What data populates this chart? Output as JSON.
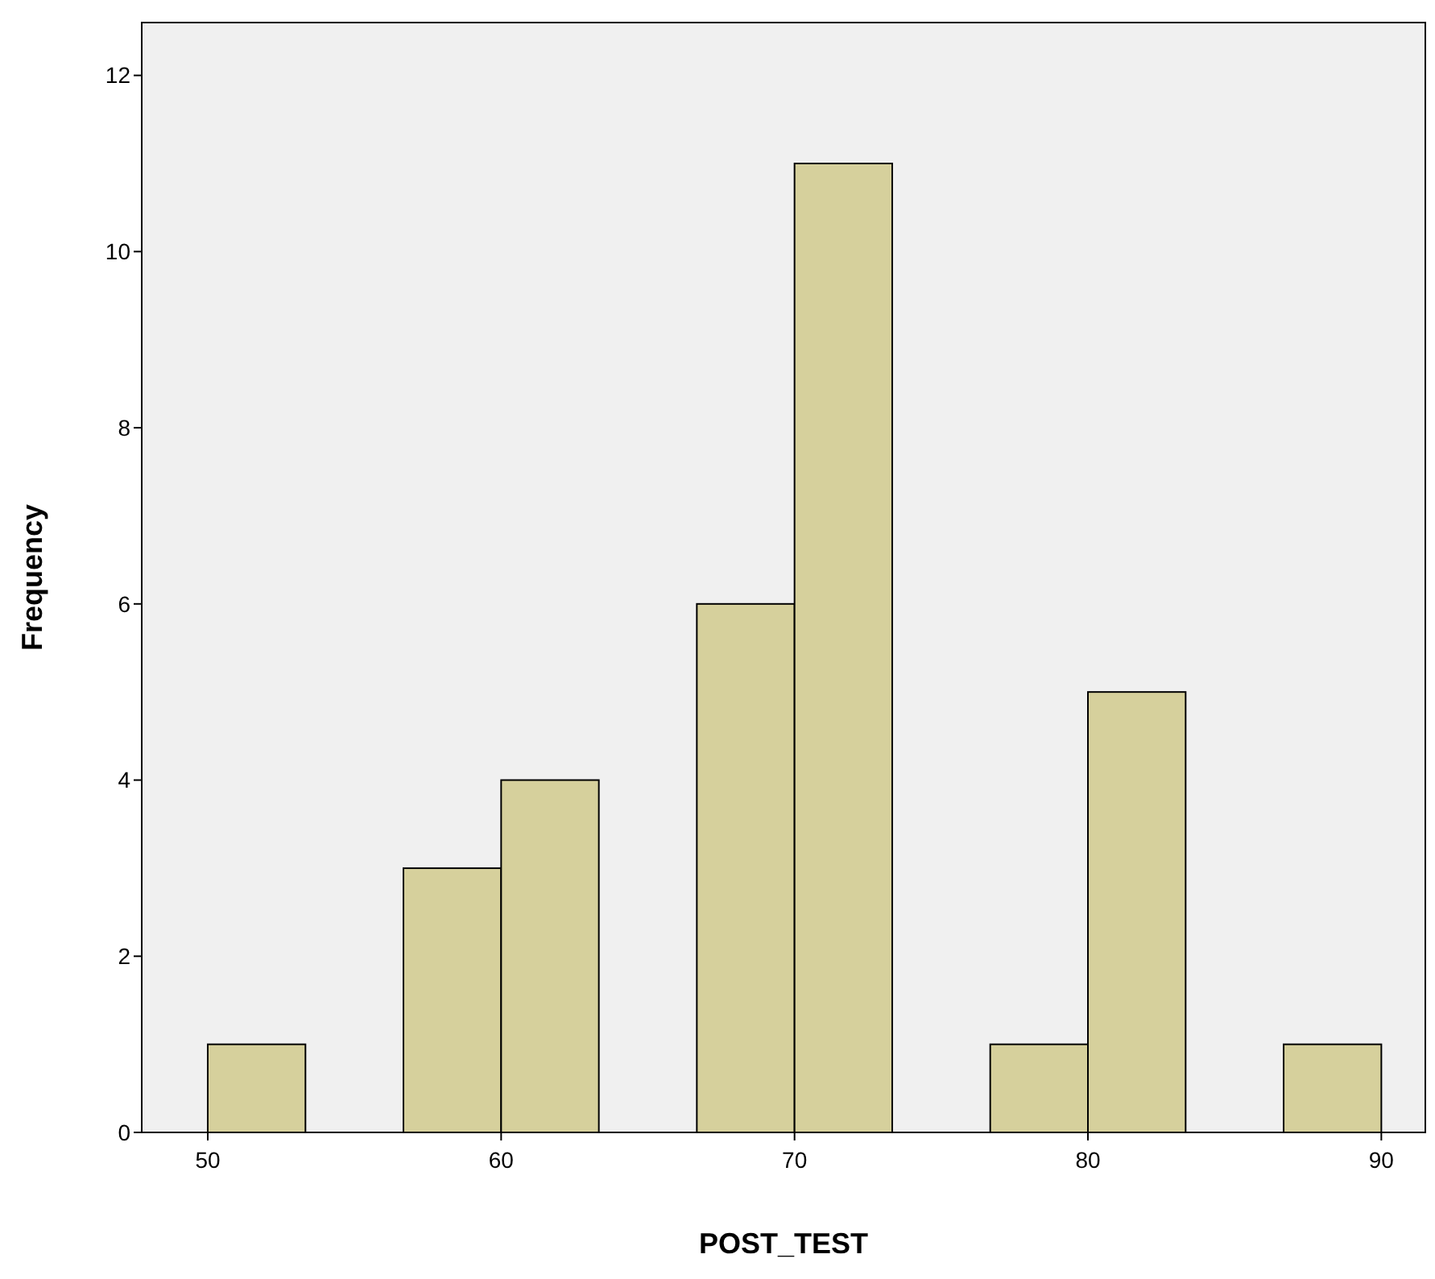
{
  "chart_data": {
    "type": "histogram",
    "xlabel": "POST_TEST",
    "ylabel": "Frequency",
    "bins": [
      50,
      53.33,
      56.67,
      60,
      63.33,
      66.67,
      70,
      73.33,
      76.67,
      80,
      83.33,
      86.67,
      90
    ],
    "values": [
      1,
      0,
      3,
      4,
      0,
      6,
      11,
      0,
      1,
      5,
      0,
      1
    ],
    "color": "#d6d09c",
    "xlim": [
      47.75,
      91.5
    ],
    "xticks": [
      50,
      60,
      70,
      80,
      90
    ],
    "ylim": [
      0,
      12.6
    ],
    "yticks": [
      0,
      2,
      4,
      6,
      8,
      10,
      12
    ],
    "grid": false
  }
}
